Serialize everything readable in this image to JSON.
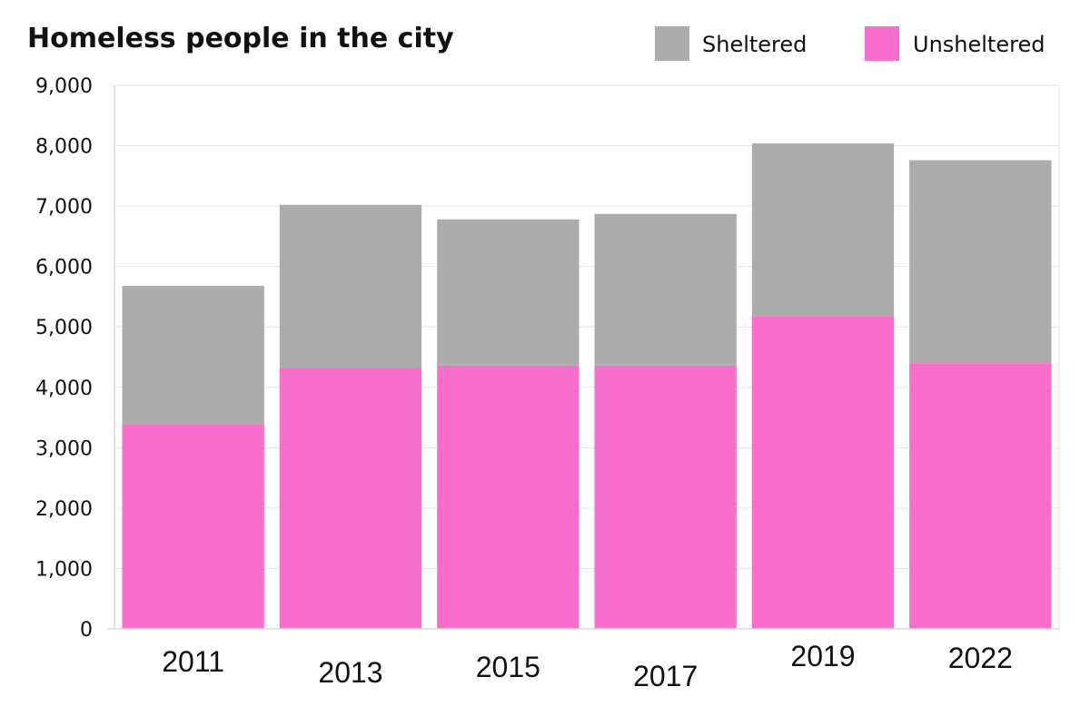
{
  "chart_data": {
    "type": "bar",
    "stacked": true,
    "title": "Homeless people in the city",
    "xlabel": "",
    "ylabel": "",
    "categories": [
      "2011",
      "2013",
      "2015",
      "2017",
      "2019",
      "2022"
    ],
    "series": [
      {
        "name": "Unsheltered",
        "color": "#f76fca",
        "values": [
          3380,
          4320,
          4360,
          4360,
          5180,
          4400
        ]
      },
      {
        "name": "Sheltered",
        "color": "#acacac",
        "values": [
          2300,
          2700,
          2420,
          2510,
          2860,
          3360
        ]
      }
    ],
    "legend": [
      {
        "label": "Sheltered",
        "color": "#acacac"
      },
      {
        "label": "Unsheltered",
        "color": "#f76fca"
      }
    ],
    "legend_position": "top-right",
    "ylim": [
      0,
      9000
    ],
    "yticks": [
      0,
      1000,
      2000,
      3000,
      4000,
      5000,
      6000,
      7000,
      8000,
      9000
    ],
    "ytick_labels": [
      "0",
      "1,000",
      "2,000",
      "3,000",
      "4,000",
      "5,000",
      "6,000",
      "7,000",
      "8,000",
      "9,000"
    ],
    "grid": true
  }
}
